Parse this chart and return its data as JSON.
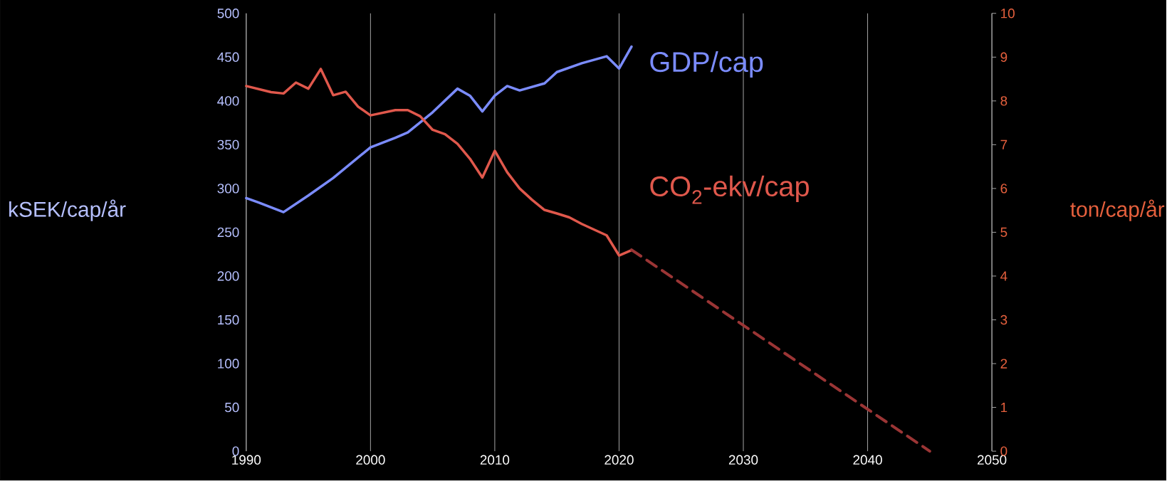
{
  "chart_data": {
    "type": "line",
    "ylabel": "kSEK/cap/år",
    "y2label": "ton/cap/år",
    "xlim": [
      1990,
      2050
    ],
    "xticks": [
      1990,
      2000,
      2010,
      2020,
      2030,
      2040,
      2050
    ],
    "ylim": [
      0,
      500
    ],
    "yticks": [
      0,
      50,
      100,
      150,
      200,
      250,
      300,
      350,
      400,
      450,
      500
    ],
    "y2lim": [
      0,
      10
    ],
    "y2ticks": [
      0,
      1,
      2,
      3,
      4,
      5,
      6,
      7,
      8,
      9,
      10
    ],
    "grid": "x",
    "series": [
      {
        "name": "GDP/cap",
        "color": "#7b8cff",
        "x": [
          1990,
          1991,
          1993,
          1995,
          1997,
          2000,
          2002,
          2003,
          2005,
          2007,
          2008,
          2009,
          2010,
          2011,
          2012,
          2014,
          2015,
          2017,
          2019,
          2020,
          2021
        ],
        "values": [
          289,
          284,
          273,
          292,
          312,
          347,
          358,
          364,
          387,
          414,
          406,
          388,
          406,
          417,
          412,
          420,
          433,
          443,
          451,
          437,
          462
        ]
      },
      {
        "name": "CO$_{2}$-ekv/cap",
        "color": "#e0584c",
        "axis": "y2",
        "x": [
          1990,
          1992,
          1993,
          1994,
          1995,
          1996,
          1997,
          1998,
          1999,
          2000,
          2002,
          2003,
          2004,
          2005,
          2006,
          2007,
          2008,
          2009,
          2010,
          2011,
          2012,
          2013,
          2014,
          2015,
          2016,
          2017,
          2018,
          2019,
          2020,
          2021
        ],
        "values": [
          8.34,
          8.2,
          8.17,
          8.42,
          8.28,
          8.73,
          8.13,
          8.21,
          7.87,
          7.67,
          7.79,
          7.79,
          7.65,
          7.34,
          7.24,
          7.02,
          6.68,
          6.25,
          6.86,
          6.37,
          6.0,
          5.74,
          5.51,
          5.43,
          5.34,
          5.19,
          5.06,
          4.93,
          4.47,
          4.59
        ]
      },
      {
        "color": "#9b3535",
        "axis": "y2",
        "line_style": "dashed",
        "x": [
          2021,
          2045
        ],
        "values": [
          4.6,
          0
        ]
      }
    ]
  }
}
